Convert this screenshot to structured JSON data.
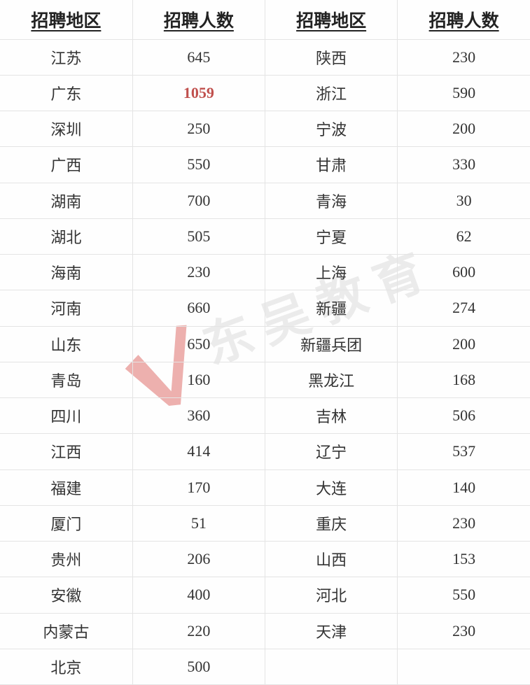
{
  "chart_data": {
    "type": "table",
    "headers": [
      "招聘地区",
      "招聘人数",
      "招聘地区",
      "招聘人数"
    ],
    "highlight_color": "#c0504d",
    "rows": [
      {
        "cells": [
          "江苏",
          "645",
          "陕西",
          "230"
        ]
      },
      {
        "cells": [
          "广东",
          "1059",
          "浙江",
          "590"
        ],
        "highlight_index": 1
      },
      {
        "cells": [
          "深圳",
          "250",
          "宁波",
          "200"
        ]
      },
      {
        "cells": [
          "广西",
          "550",
          "甘肃",
          "330"
        ]
      },
      {
        "cells": [
          "湖南",
          "700",
          "青海",
          "30"
        ]
      },
      {
        "cells": [
          "湖北",
          "505",
          "宁夏",
          "62"
        ]
      },
      {
        "cells": [
          "海南",
          "230",
          "上海",
          "600"
        ]
      },
      {
        "cells": [
          "河南",
          "660",
          "新疆",
          "274"
        ]
      },
      {
        "cells": [
          "山东",
          "650",
          "新疆兵团",
          "200"
        ]
      },
      {
        "cells": [
          "青岛",
          "160",
          "黑龙江",
          "168"
        ]
      },
      {
        "cells": [
          "四川",
          "360",
          "吉林",
          "506"
        ]
      },
      {
        "cells": [
          "江西",
          "414",
          "辽宁",
          "537"
        ]
      },
      {
        "cells": [
          "福建",
          "170",
          "大连",
          "140"
        ]
      },
      {
        "cells": [
          "厦门",
          "51",
          "重庆",
          "230"
        ]
      },
      {
        "cells": [
          "贵州",
          "206",
          "山西",
          "153"
        ]
      },
      {
        "cells": [
          "安徽",
          "400",
          "河北",
          "550"
        ]
      },
      {
        "cells": [
          "内蒙古",
          "220",
          "天津",
          "230"
        ]
      },
      {
        "cells": [
          "北京",
          "500",
          "",
          ""
        ]
      }
    ]
  },
  "watermark": {
    "text": "东吴教育",
    "logo": "check-icon",
    "logo_color": "#d9534f"
  }
}
